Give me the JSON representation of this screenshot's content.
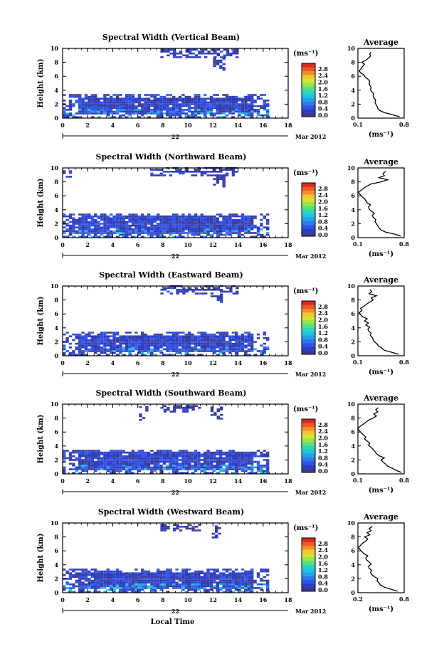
{
  "chart_data": [
    {
      "type": "heatmap",
      "title": "Spectral Width (Vertical Beam)",
      "ylabel": "Height (km)",
      "xlim": [
        0,
        18
      ],
      "ylim": [
        0,
        10
      ],
      "x_ticks": [
        "0",
        "2",
        "4",
        "6",
        "8",
        "10",
        "12",
        "14",
        "16",
        "18"
      ],
      "y_ticks": [
        "0",
        "2",
        "4",
        "6",
        "8",
        "10"
      ],
      "date_day": "22",
      "date_month": "Mar 2012",
      "colorbar": {
        "unit": "(ms⁻¹)",
        "ticks": [
          "0.0",
          "0.4",
          "0.8",
          "1.2",
          "1.6",
          "2.0",
          "2.4",
          "2.8"
        ],
        "range": [
          0,
          3.0
        ]
      },
      "echo_regions": [
        {
          "x": [
            0.0,
            16.4
          ],
          "y": [
            0.0,
            3.2
          ],
          "level": 0.35
        },
        {
          "x": [
            7.8,
            13.9
          ],
          "y": [
            8.6,
            9.7
          ],
          "level": 0.25
        },
        {
          "x": [
            12.0,
            12.8
          ],
          "y": [
            6.8,
            8.6
          ],
          "level": 0.2
        }
      ],
      "profile": {
        "title": "Average",
        "xlabel": "(ms⁻¹)",
        "xlim": [
          0.1,
          0.8
        ],
        "x_ticks": [
          "0.1",
          "0.8"
        ],
        "height": [
          0.2,
          0.5,
          0.8,
          1.1,
          1.4,
          1.7,
          2.0,
          2.3,
          2.6,
          2.9,
          3.2,
          3.5,
          3.8,
          4.1,
          4.4,
          4.7,
          5.0,
          5.3,
          5.6,
          5.9,
          6.2,
          6.5,
          6.8,
          7.1,
          7.4,
          7.7,
          8.0,
          8.3,
          8.6,
          8.9,
          9.2,
          9.5
        ],
        "value": [
          0.73,
          0.62,
          0.5,
          0.43,
          0.4,
          0.39,
          0.37,
          0.36,
          0.37,
          0.34,
          0.33,
          0.34,
          0.31,
          0.29,
          0.3,
          0.28,
          0.27,
          0.28,
          0.25,
          0.21,
          0.19,
          0.14,
          0.12,
          0.15,
          0.17,
          0.2,
          0.16,
          0.22,
          0.26,
          0.29,
          0.28,
          0.3
        ]
      }
    },
    {
      "type": "heatmap",
      "title": "Spectral Width (Northward Beam)",
      "ylabel": "Height (km)",
      "xlim": [
        0,
        18
      ],
      "ylim": [
        0,
        10
      ],
      "x_ticks": [
        "0",
        "2",
        "4",
        "6",
        "8",
        "10",
        "12",
        "14",
        "16",
        "18"
      ],
      "y_ticks": [
        "0",
        "2",
        "4",
        "6",
        "8",
        "10"
      ],
      "date_day": "22",
      "date_month": "Mar 2012",
      "colorbar": {
        "unit": "(ms⁻¹)",
        "ticks": [
          "0.0",
          "0.4",
          "0.8",
          "1.2",
          "1.6",
          "2.0",
          "2.4",
          "2.8"
        ],
        "range": [
          0,
          3.0
        ]
      },
      "echo_regions": [
        {
          "x": [
            0.0,
            16.4
          ],
          "y": [
            0.0,
            3.4
          ],
          "level": 0.35
        },
        {
          "x": [
            7.0,
            13.9
          ],
          "y": [
            8.8,
            9.9
          ],
          "level": 0.25
        },
        {
          "x": [
            0.0,
            0.6
          ],
          "y": [
            8.6,
            9.4
          ],
          "level": 0.3
        },
        {
          "x": [
            12.0,
            12.8
          ],
          "y": [
            7.2,
            8.8
          ],
          "level": 0.2
        }
      ],
      "profile": {
        "title": "Average",
        "xlabel": "(ms⁻¹)",
        "xlim": [
          0.1,
          0.8
        ],
        "x_ticks": [
          "0.1",
          "0.8"
        ],
        "height": [
          0.2,
          0.5,
          0.8,
          1.1,
          1.4,
          1.7,
          2.0,
          2.3,
          2.6,
          2.9,
          3.2,
          3.5,
          3.8,
          4.1,
          4.4,
          4.7,
          5.0,
          5.3,
          5.6,
          5.9,
          6.2,
          6.5,
          6.8,
          7.1,
          7.4,
          7.7,
          8.0,
          8.3,
          8.6,
          8.9,
          9.2,
          9.5
        ],
        "value": [
          0.75,
          0.66,
          0.52,
          0.45,
          0.42,
          0.4,
          0.38,
          0.36,
          0.37,
          0.33,
          0.32,
          0.35,
          0.3,
          0.27,
          0.26,
          0.29,
          0.24,
          0.22,
          0.2,
          0.16,
          0.13,
          0.11,
          0.15,
          0.19,
          0.24,
          0.3,
          0.45,
          0.55,
          0.42,
          0.5,
          0.48,
          0.52
        ]
      }
    },
    {
      "type": "heatmap",
      "title": "Spectral Width (Eastward Beam)",
      "ylabel": "Height (km)",
      "xlim": [
        0,
        18
      ],
      "ylim": [
        0,
        10
      ],
      "x_ticks": [
        "0",
        "2",
        "4",
        "6",
        "8",
        "10",
        "12",
        "14",
        "16",
        "18"
      ],
      "y_ticks": [
        "0",
        "2",
        "4",
        "6",
        "8",
        "10"
      ],
      "date_day": "22",
      "date_month": "Mar 2012",
      "colorbar": {
        "unit": "(ms⁻¹)",
        "ticks": [
          "0.0",
          "0.4",
          "0.8",
          "1.2",
          "1.6",
          "2.0",
          "2.4",
          "2.8"
        ],
        "range": [
          0,
          3.0
        ]
      },
      "echo_regions": [
        {
          "x": [
            0.0,
            16.4
          ],
          "y": [
            0.0,
            3.2
          ],
          "level": 0.35
        },
        {
          "x": [
            7.8,
            13.9
          ],
          "y": [
            8.8,
            9.9
          ],
          "level": 0.25
        },
        {
          "x": [
            11.8,
            12.6
          ],
          "y": [
            7.6,
            8.8
          ],
          "level": 0.2
        }
      ],
      "profile": {
        "title": "Average",
        "xlabel": "(ms⁻¹)",
        "xlim": [
          0.1,
          0.8
        ],
        "x_ticks": [
          "0.1",
          "0.8"
        ],
        "height": [
          0.2,
          0.5,
          0.8,
          1.1,
          1.4,
          1.7,
          2.0,
          2.3,
          2.6,
          2.9,
          3.2,
          3.5,
          3.8,
          4.1,
          4.4,
          4.7,
          5.0,
          5.3,
          5.6,
          5.9,
          6.2,
          6.5,
          6.8,
          7.1,
          7.4,
          7.7,
          8.0,
          8.3,
          8.6,
          8.9,
          9.2,
          9.5
        ],
        "value": [
          0.72,
          0.61,
          0.5,
          0.46,
          0.41,
          0.39,
          0.35,
          0.33,
          0.32,
          0.29,
          0.3,
          0.27,
          0.25,
          0.28,
          0.22,
          0.26,
          0.2,
          0.24,
          0.17,
          0.14,
          0.12,
          0.16,
          0.14,
          0.19,
          0.23,
          0.28,
          0.33,
          0.3,
          0.38,
          0.27,
          0.31,
          0.28
        ]
      }
    },
    {
      "type": "heatmap",
      "title": "Spectral Width (Southward Beam)",
      "ylabel": "Height (km)",
      "xlim": [
        0,
        18
      ],
      "ylim": [
        0,
        10
      ],
      "x_ticks": [
        "0",
        "2",
        "4",
        "6",
        "8",
        "10",
        "12",
        "14",
        "16",
        "18"
      ],
      "y_ticks": [
        "0",
        "2",
        "4",
        "6",
        "8",
        "10"
      ],
      "date_day": "22",
      "date_month": "Mar 2012",
      "colorbar": {
        "unit": "(ms⁻¹)",
        "ticks": [
          "0.0",
          "0.4",
          "0.8",
          "1.2",
          "1.6",
          "2.0",
          "2.4",
          "2.8"
        ],
        "range": [
          0,
          3.0
        ]
      },
      "echo_regions": [
        {
          "x": [
            0.0,
            16.4
          ],
          "y": [
            0.0,
            3.4
          ],
          "level": 0.35
        },
        {
          "x": [
            7.8,
            10.9
          ],
          "y": [
            8.8,
            9.8
          ],
          "level": 0.25
        },
        {
          "x": [
            6.1,
            6.8
          ],
          "y": [
            7.6,
            9.6
          ],
          "level": 0.25
        },
        {
          "x": [
            11.8,
            12.6
          ],
          "y": [
            7.8,
            9.6
          ],
          "level": 0.2
        }
      ],
      "profile": {
        "title": "Average",
        "xlabel": "(ms⁻¹)",
        "xlim": [
          0.1,
          0.8
        ],
        "x_ticks": [
          "0.1",
          "0.8"
        ],
        "height": [
          0.2,
          0.5,
          0.8,
          1.1,
          1.4,
          1.7,
          2.0,
          2.3,
          2.6,
          2.9,
          3.2,
          3.5,
          3.8,
          4.1,
          4.4,
          4.7,
          5.0,
          5.3,
          5.6,
          5.9,
          6.2,
          6.5,
          6.8,
          7.1,
          7.4,
          7.7,
          8.0,
          8.3,
          8.6,
          8.9,
          9.2,
          9.5
        ],
        "value": [
          0.76,
          0.68,
          0.62,
          0.55,
          0.52,
          0.48,
          0.45,
          0.5,
          0.42,
          0.38,
          0.36,
          0.33,
          0.3,
          0.26,
          0.28,
          0.24,
          0.2,
          0.22,
          0.18,
          0.15,
          0.12,
          0.1,
          0.13,
          0.18,
          0.22,
          0.26,
          0.33,
          0.38,
          0.34,
          0.4,
          0.37,
          0.41
        ]
      }
    },
    {
      "type": "heatmap",
      "title": "Spectral Width (Westward Beam)",
      "ylabel": "Height (km)",
      "xlim": [
        0,
        18
      ],
      "ylim": [
        0,
        10
      ],
      "x_ticks": [
        "0",
        "2",
        "4",
        "6",
        "8",
        "10",
        "12",
        "14",
        "16",
        "18"
      ],
      "y_ticks": [
        "0",
        "2",
        "4",
        "6",
        "8",
        "10"
      ],
      "date_day": "22",
      "date_month": "Mar 2012",
      "xlabel": "Local Time",
      "colorbar": {
        "unit": "(ms⁻¹)",
        "ticks": [
          "0.0",
          "0.4",
          "0.8",
          "1.2",
          "1.6",
          "2.0",
          "2.4",
          "2.8"
        ],
        "range": [
          0,
          3.0
        ]
      },
      "echo_regions": [
        {
          "x": [
            0.0,
            16.4
          ],
          "y": [
            0.0,
            3.2
          ],
          "level": 0.35
        },
        {
          "x": [
            7.8,
            10.8
          ],
          "y": [
            8.8,
            9.7
          ],
          "level": 0.25
        },
        {
          "x": [
            11.9,
            12.5
          ],
          "y": [
            7.8,
            9.6
          ],
          "level": 0.2
        }
      ],
      "profile": {
        "title": "Average",
        "xlabel": "(ms⁻¹)",
        "xlim": [
          0.1,
          0.8
        ],
        "x_ticks": [
          "0.2",
          "0.8"
        ],
        "height": [
          0.2,
          0.5,
          0.8,
          1.1,
          1.4,
          1.7,
          2.0,
          2.3,
          2.6,
          2.9,
          3.2,
          3.5,
          3.8,
          4.1,
          4.4,
          4.7,
          5.0,
          5.3,
          5.6,
          5.9,
          6.2,
          6.5,
          6.8,
          7.1,
          7.4,
          7.7,
          8.0,
          8.3,
          8.6,
          8.9,
          9.2,
          9.5
        ],
        "value": [
          0.7,
          0.6,
          0.5,
          0.44,
          0.42,
          0.39,
          0.4,
          0.35,
          0.31,
          0.29,
          0.31,
          0.27,
          0.26,
          0.3,
          0.27,
          0.23,
          0.22,
          0.25,
          0.19,
          0.16,
          0.13,
          0.11,
          0.14,
          0.17,
          0.22,
          0.25,
          0.2,
          0.28,
          0.24,
          0.3,
          0.27,
          0.32
        ]
      }
    }
  ],
  "colors": {
    "colormap": [
      "#3a3a8f",
      "#2e3cc4",
      "#3055e6",
      "#2f7ae8",
      "#25a0ea",
      "#1fc4e0",
      "#2ed6b8",
      "#58e07e",
      "#9ae44a",
      "#d2e43a",
      "#f2c632",
      "#f28f2a",
      "#ea5a26",
      "#d92a24"
    ]
  }
}
